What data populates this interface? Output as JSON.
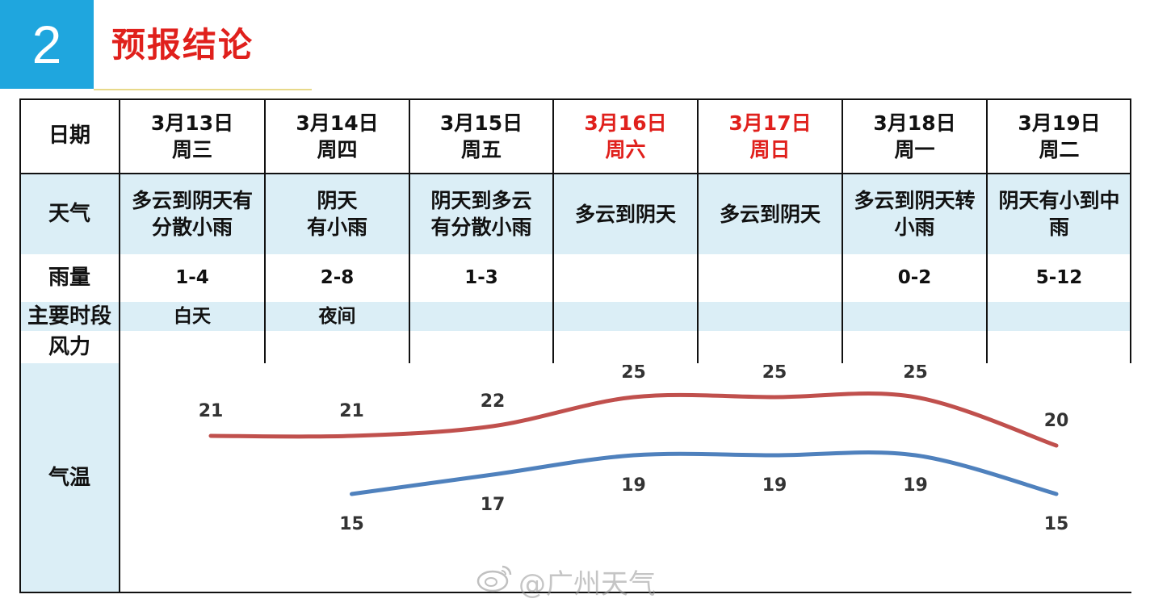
{
  "header": {
    "section_number": "2",
    "title": "预报结论"
  },
  "table": {
    "row_labels": {
      "date": "日期",
      "weather": "天气",
      "rain": "雨量",
      "period": "主要时段",
      "wind": "风力",
      "temp": "气温"
    },
    "days": [
      {
        "date": "3月13日",
        "weekday": "周三",
        "weather": [
          "多云到阴天有",
          "分散小雨"
        ],
        "rain": "1-4",
        "period": "白天",
        "wind": "",
        "weekend": false
      },
      {
        "date": "3月14日",
        "weekday": "周四",
        "weather": [
          "阴天",
          "有小雨"
        ],
        "rain": "2-8",
        "period": "夜间",
        "wind": "",
        "weekend": false
      },
      {
        "date": "3月15日",
        "weekday": "周五",
        "weather": [
          "阴天到多云",
          "有分散小雨"
        ],
        "rain": "1-3",
        "period": "",
        "wind": "",
        "weekend": false
      },
      {
        "date": "3月16日",
        "weekday": "周六",
        "weather": [
          "多云到阴天"
        ],
        "rain": "",
        "period": "",
        "wind": "",
        "weekend": true
      },
      {
        "date": "3月17日",
        "weekday": "周日",
        "weather": [
          "多云到阴天"
        ],
        "rain": "",
        "period": "",
        "wind": "",
        "weekend": true
      },
      {
        "date": "3月18日",
        "weekday": "周一",
        "weather": [
          "多云到阴天转",
          "小雨"
        ],
        "rain": "0-2",
        "period": "",
        "wind": "",
        "weekend": false
      },
      {
        "date": "3月19日",
        "weekday": "周二",
        "weather": [
          "阴天有小到中",
          "雨"
        ],
        "rain": "5-12",
        "period": "",
        "wind": "",
        "weekend": false
      }
    ]
  },
  "chart_data": {
    "type": "line",
    "categories": [
      "3月13日",
      "3月14日",
      "3月15日",
      "3月16日",
      "3月17日",
      "3月18日",
      "3月19日"
    ],
    "series": [
      {
        "values": [
          21,
          21,
          22,
          25,
          25,
          25,
          20
        ],
        "color": "#c0504d"
      },
      {
        "values": [
          null,
          15,
          17,
          19,
          19,
          19,
          15
        ],
        "color": "#4f81bd"
      }
    ],
    "ylim": [
      12,
      27
    ],
    "grid": false
  },
  "watermark": "@广州天气",
  "colors": {
    "accent_blue": "#1fa6de",
    "title_red": "#e0201c",
    "shade": "#dbeef6",
    "weekend_red": "#e0201c"
  }
}
